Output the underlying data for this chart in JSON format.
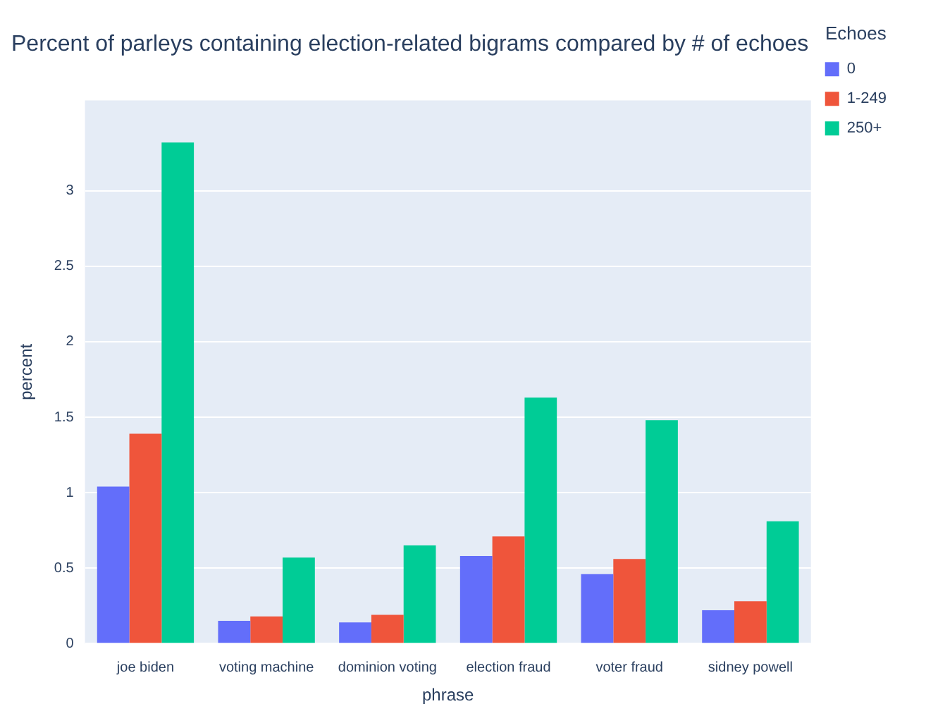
{
  "chart_data": {
    "type": "bar",
    "title": "Percent of parleys containing election-related bigrams compared by # of echoes",
    "xlabel": "phrase",
    "ylabel": "percent",
    "legend_title": "Echoes",
    "categories": [
      "joe biden",
      "voting machine",
      "dominion voting",
      "election fraud",
      "voter fraud",
      "sidney powell"
    ],
    "series": [
      {
        "name": "0",
        "color": "#636efa",
        "values": [
          1.04,
          0.15,
          0.14,
          0.58,
          0.46,
          0.22
        ]
      },
      {
        "name": "1-249",
        "color": "#ef553b",
        "values": [
          1.39,
          0.18,
          0.19,
          0.71,
          0.56,
          0.28
        ]
      },
      {
        "name": "250+",
        "color": "#00cc96",
        "values": [
          3.32,
          0.57,
          0.65,
          1.63,
          1.48,
          0.81
        ]
      }
    ],
    "ylim": [
      0,
      3.6
    ],
    "yticks": [
      0,
      0.5,
      1,
      1.5,
      2,
      2.5,
      3
    ],
    "grid": "y",
    "legend": "top right"
  }
}
